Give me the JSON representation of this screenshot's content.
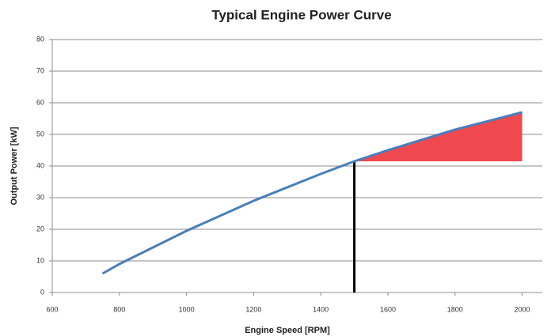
{
  "chart_data": {
    "type": "line",
    "title": "Typical Engine Power Curve",
    "xlabel": "Engine Speed [RPM]",
    "ylabel": "Output Power [kW]",
    "x": [
      750,
      800,
      1000,
      1200,
      1400,
      1500,
      1600,
      1800,
      2000
    ],
    "series": [
      {
        "name": "Output Power",
        "color": "#4a7ebb",
        "values": [
          6,
          9,
          19.5,
          29,
          37.5,
          41.5,
          45,
          51.5,
          57
        ]
      }
    ],
    "xlim": [
      600,
      2060
    ],
    "xticks": [
      600,
      800,
      1000,
      1200,
      1400,
      1600,
      1800,
      2000
    ],
    "ylim": [
      0,
      80
    ],
    "yticks": [
      0,
      10,
      20,
      30,
      40,
      50,
      60,
      70,
      80
    ],
    "grid": true,
    "highlight": {
      "x_start": 1500,
      "x_end": 2000,
      "y_base": 41.5,
      "color": "#f0484f"
    },
    "marker_line": {
      "x": 1500,
      "y_top": 41.5,
      "color": "#000000"
    }
  }
}
